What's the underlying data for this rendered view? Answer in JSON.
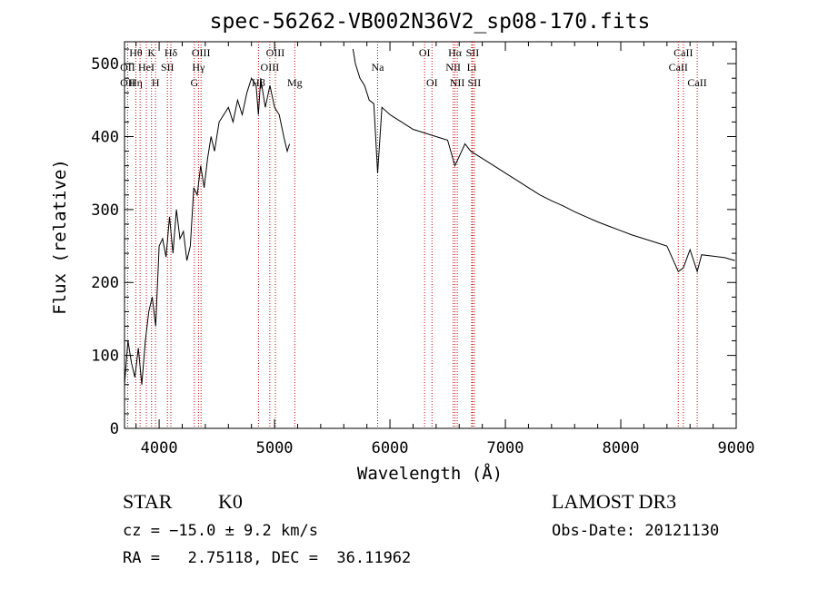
{
  "chart_data": {
    "type": "line",
    "title": "spec-56262-VB002N36V2_sp08-170.fits",
    "xlabel": "Wavelength (Å)",
    "ylabel": "Flux (relative)",
    "xlim": [
      3700,
      9000
    ],
    "ylim": [
      0,
      530
    ],
    "xticks": [
      4000,
      5000,
      6000,
      7000,
      8000,
      9000
    ],
    "yticks": [
      0,
      100,
      200,
      300,
      400,
      500
    ],
    "line_color": "#000000",
    "marker_color": "#cc0000",
    "gap": [
      5140,
      5680
    ],
    "series": [
      {
        "name": "flux",
        "x": [
          3700,
          3730,
          3760,
          3790,
          3820,
          3850,
          3880,
          3910,
          3940,
          3970,
          4000,
          4030,
          4060,
          4090,
          4120,
          4150,
          4180,
          4210,
          4240,
          4270,
          4300,
          4330,
          4360,
          4390,
          4420,
          4450,
          4480,
          4520,
          4560,
          4600,
          4640,
          4680,
          4720,
          4760,
          4800,
          4840,
          4860,
          4880,
          4920,
          4960,
          5000,
          5040,
          5080,
          5110,
          5130,
          5680,
          5700,
          5740,
          5780,
          5820,
          5860,
          5893,
          5930,
          6000,
          6100,
          6200,
          6300,
          6400,
          6500,
          6563,
          6650,
          6700,
          6800,
          6900,
          7000,
          7100,
          7200,
          7300,
          7400,
          7500,
          7600,
          7700,
          7800,
          7900,
          8000,
          8100,
          8200,
          8300,
          8400,
          8498,
          8542,
          8600,
          8662,
          8700,
          8800,
          8900,
          8990
        ],
        "y": [
          60,
          120,
          90,
          70,
          110,
          60,
          120,
          160,
          180,
          140,
          250,
          260,
          235,
          290,
          240,
          300,
          260,
          270,
          230,
          250,
          330,
          320,
          360,
          330,
          370,
          400,
          380,
          420,
          430,
          440,
          420,
          450,
          430,
          460,
          480,
          470,
          430,
          480,
          440,
          470,
          440,
          430,
          400,
          380,
          390,
          520,
          500,
          480,
          470,
          450,
          445,
          350,
          440,
          430,
          420,
          410,
          405,
          400,
          395,
          360,
          390,
          380,
          370,
          360,
          350,
          340,
          330,
          320,
          312,
          305,
          297,
          290,
          283,
          277,
          271,
          265,
          260,
          255,
          250,
          215,
          220,
          245,
          215,
          238,
          236,
          234,
          230
        ]
      }
    ],
    "lines": [
      {
        "name": "OII",
        "wl": 3727,
        "labels": [
          {
            "text": "OII",
            "row": 3
          },
          {
            "text": "OII",
            "row": 2
          }
        ]
      },
      {
        "name": "H-theta",
        "wl": 3798,
        "labels": [
          {
            "text": "Hθ",
            "row": 1
          },
          {
            "text": "Hη",
            "row": 3
          }
        ]
      },
      {
        "name": "H-eta",
        "wl": 3835,
        "labels": []
      },
      {
        "name": "HeI",
        "wl": 3889,
        "labels": [
          {
            "text": "HeI",
            "row": 2
          }
        ]
      },
      {
        "name": "K",
        "wl": 3934,
        "labels": [
          {
            "text": "K",
            "row": 1
          }
        ]
      },
      {
        "name": "H",
        "wl": 3969,
        "labels": [
          {
            "text": "H",
            "row": 3
          }
        ]
      },
      {
        "name": "SII",
        "wl": 4072,
        "labels": [
          {
            "text": "SII",
            "row": 2
          }
        ]
      },
      {
        "name": "H-delta",
        "wl": 4102,
        "labels": [
          {
            "text": "Hδ",
            "row": 1
          }
        ]
      },
      {
        "name": "G",
        "wl": 4305,
        "labels": [
          {
            "text": "G",
            "row": 3
          }
        ]
      },
      {
        "name": "H-gamma",
        "wl": 4341,
        "labels": [
          {
            "text": "Hγ",
            "row": 2
          }
        ]
      },
      {
        "name": "OIII",
        "wl": 4363,
        "labels": [
          {
            "text": "OIII",
            "row": 1
          }
        ]
      },
      {
        "name": "H-beta",
        "wl": 4861,
        "labels": [
          {
            "text": "Hβ",
            "row": 3
          }
        ]
      },
      {
        "name": "OIII",
        "wl": 4959,
        "labels": [
          {
            "text": "OIII",
            "row": 2
          }
        ]
      },
      {
        "name": "OIII",
        "wl": 5007,
        "labels": [
          {
            "text": "OIII",
            "row": 1
          }
        ]
      },
      {
        "name": "Mg",
        "wl": 5175,
        "labels": [
          {
            "text": "Mg",
            "row": 3
          }
        ]
      },
      {
        "name": "Na",
        "wl": 5893,
        "labels": [
          {
            "text": "Na",
            "row": 2
          }
        ]
      },
      {
        "name": "OI",
        "wl": 6300,
        "labels": [
          {
            "text": "OI",
            "row": 1
          }
        ]
      },
      {
        "name": "OI",
        "wl": 6364,
        "labels": [
          {
            "text": "OI",
            "row": 3
          }
        ]
      },
      {
        "name": "NII",
        "wl": 6548,
        "labels": [
          {
            "text": "NII",
            "row": 2
          }
        ]
      },
      {
        "name": "H-alpha",
        "wl": 6563,
        "labels": [
          {
            "text": "Hα",
            "row": 1
          }
        ]
      },
      {
        "name": "NII",
        "wl": 6583,
        "labels": [
          {
            "text": "NII",
            "row": 3
          }
        ]
      },
      {
        "name": "Li",
        "wl": 6708,
        "labels": [
          {
            "text": "Li",
            "row": 2
          }
        ]
      },
      {
        "name": "SII",
        "wl": 6716,
        "labels": [
          {
            "text": "SII",
            "row": 1
          }
        ]
      },
      {
        "name": "SII",
        "wl": 6731,
        "labels": [
          {
            "text": "SII",
            "row": 3
          }
        ]
      },
      {
        "name": "CaII",
        "wl": 8498,
        "labels": [
          {
            "text": "CaII",
            "row": 2
          }
        ]
      },
      {
        "name": "CaII",
        "wl": 8542,
        "labels": [
          {
            "text": "CaII",
            "row": 1
          }
        ]
      },
      {
        "name": "CaII",
        "wl": 8662,
        "labels": [
          {
            "text": "CaII",
            "row": 3
          }
        ]
      }
    ]
  },
  "info": {
    "class": "STAR",
    "subclass": "K0",
    "survey": "LAMOST DR3",
    "cz": "cz = −15.0 ± 9.2 km/s",
    "obs_date": "Obs-Date: 20121130",
    "coords": "RA =   2.75118, DEC =  36.11962"
  }
}
